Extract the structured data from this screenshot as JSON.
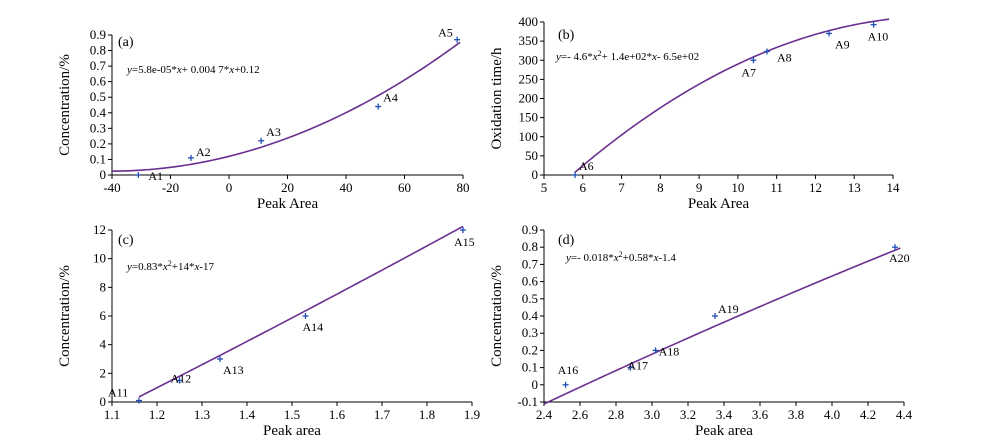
{
  "chart_data": [
    {
      "id": "a",
      "type": "scatter",
      "panel_label": "(a)",
      "equation": {
        "segments": [
          {
            "t": "y",
            "i": true
          },
          {
            "t": "=5.8e-05*"
          },
          {
            "t": "x",
            "i": true
          },
          {
            "t": "+ 0.004 7*"
          },
          {
            "t": "x",
            "i": true
          },
          {
            "t": "+0.12"
          }
        ]
      },
      "xlabel": "Peak Area",
      "ylabel": "Concentration/%",
      "xlim": [
        -40,
        80
      ],
      "ylim": [
        0,
        0.9
      ],
      "xticks": [
        "-40",
        "-20",
        "0",
        "20",
        "40",
        "60",
        "80"
      ],
      "yticks": [
        "0",
        "0.1",
        "0.2",
        "0.3",
        "0.4",
        "0.5",
        "0.6",
        "0.7",
        "0.8",
        "0.9"
      ],
      "fit": {
        "a": 5.8e-05,
        "b": 0.0047,
        "c": 0.12,
        "x_range": [
          -40,
          79
        ]
      },
      "points": [
        {
          "label": "A1",
          "x": -31,
          "y": 0.0
        },
        {
          "label": "A2",
          "x": -13,
          "y": 0.11
        },
        {
          "label": "A3",
          "x": 11,
          "y": 0.22
        },
        {
          "label": "A4",
          "x": 51,
          "y": 0.44
        },
        {
          "label": "A5",
          "x": 78,
          "y": 0.87
        }
      ]
    },
    {
      "id": "b",
      "type": "scatter",
      "panel_label": "(b)",
      "equation": {
        "segments": [
          {
            "t": "y",
            "i": true
          },
          {
            "t": "=- 4.6*"
          },
          {
            "t": "x",
            "i": true
          },
          {
            "t": "2",
            "sup": true
          },
          {
            "t": "+ 1.4e+02*"
          },
          {
            "t": "x",
            "i": true
          },
          {
            "t": "- 6.5e+02"
          }
        ]
      },
      "xlabel": "Peak Area",
      "ylabel": "Oxidation time/h",
      "xlim": [
        5,
        14
      ],
      "ylim": [
        0,
        400
      ],
      "xticks": [
        "5",
        "6",
        "7",
        "8",
        "9",
        "10",
        "11",
        "12",
        "13",
        "14"
      ],
      "yticks": [
        "0",
        "50",
        "100",
        "150",
        "200",
        "250",
        "300",
        "350",
        "400"
      ],
      "fit": {
        "a": -4.6,
        "b": 140,
        "c": -650,
        "x_range": [
          5.8,
          13.9
        ]
      },
      "points": [
        {
          "label": "A6",
          "x": 5.8,
          "y": 0
        },
        {
          "label": "A7",
          "x": 10.4,
          "y": 300
        },
        {
          "label": "A8",
          "x": 10.75,
          "y": 323
        },
        {
          "label": "A9",
          "x": 12.35,
          "y": 370
        },
        {
          "label": "A10",
          "x": 13.5,
          "y": 393
        }
      ]
    },
    {
      "id": "c",
      "type": "scatter",
      "panel_label": "(c)",
      "equation": {
        "segments": [
          {
            "t": "y",
            "i": true
          },
          {
            "t": "=0.83*"
          },
          {
            "t": "x",
            "i": true
          },
          {
            "t": "2",
            "sup": true
          },
          {
            "t": "+14*"
          },
          {
            "t": "x",
            "i": true
          },
          {
            "t": "-17"
          }
        ]
      },
      "xlabel": "Peak area",
      "ylabel": "Concentration/%",
      "xlim": [
        1.1,
        1.9
      ],
      "ylim": [
        0,
        12
      ],
      "xticks": [
        "1.1",
        "1.2",
        "1.3",
        "1.4",
        "1.5",
        "1.6",
        "1.7",
        "1.8",
        "1.9"
      ],
      "yticks": [
        "0",
        "2",
        "4",
        "6",
        "8",
        "10",
        "12"
      ],
      "fit": {
        "a": 0.83,
        "b": 14,
        "c": -17,
        "x_range": [
          1.16,
          1.88
        ]
      },
      "points": [
        {
          "label": "A11",
          "x": 1.16,
          "y": 0.1
        },
        {
          "label": "A12",
          "x": 1.25,
          "y": 1.5
        },
        {
          "label": "A13",
          "x": 1.34,
          "y": 3.0
        },
        {
          "label": "A14",
          "x": 1.53,
          "y": 6.0
        },
        {
          "label": "A15",
          "x": 1.88,
          "y": 12.0
        }
      ]
    },
    {
      "id": "d",
      "type": "scatter",
      "panel_label": "(d)",
      "equation": {
        "segments": [
          {
            "t": "y",
            "i": true
          },
          {
            "t": "=- 0.018*"
          },
          {
            "t": "x",
            "i": true
          },
          {
            "t": "2",
            "sup": true
          },
          {
            "t": "+0.58*"
          },
          {
            "t": "x",
            "i": true
          },
          {
            "t": "-1.4"
          }
        ]
      },
      "xlabel": "Peak area",
      "ylabel": "Concentration/%",
      "xlim": [
        2.4,
        4.4
      ],
      "ylim": [
        -0.1,
        0.9
      ],
      "xticks": [
        "2.4",
        "2.6",
        "2.8",
        "3.0",
        "3.2",
        "3.4",
        "3.6",
        "3.8",
        "4.0",
        "4.2",
        "4.4"
      ],
      "yticks": [
        "-0.1",
        "0",
        "0.1",
        "0.2",
        "0.3",
        "0.4",
        "0.5",
        "0.6",
        "0.7",
        "0.8",
        "0.9"
      ],
      "fit": {
        "a": -0.018,
        "b": 0.58,
        "c": -1.4,
        "x_range": [
          2.4,
          4.38
        ]
      },
      "points": [
        {
          "label": "A16",
          "x": 2.52,
          "y": 0.0
        },
        {
          "label": "A17",
          "x": 2.88,
          "y": 0.1
        },
        {
          "label": "A18",
          "x": 3.02,
          "y": 0.2
        },
        {
          "label": "A19",
          "x": 3.35,
          "y": 0.4
        },
        {
          "label": "A20",
          "x": 4.35,
          "y": 0.8
        }
      ]
    }
  ]
}
